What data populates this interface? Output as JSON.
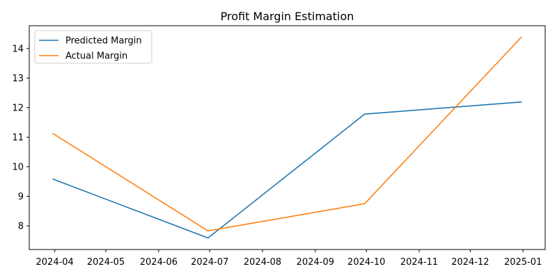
{
  "chart_data": {
    "type": "line",
    "title": "Profit Margin Estimation",
    "xlabel": "",
    "ylabel": "",
    "x": [
      "2024-03-31",
      "2024-06-30",
      "2024-09-30",
      "2024-12-31"
    ],
    "series": [
      {
        "name": "Predicted Margin",
        "color": "#1f77b4",
        "values": [
          9.58,
          7.59,
          11.78,
          12.19
        ]
      },
      {
        "name": "Actual Margin",
        "color": "#ff7f0e",
        "values": [
          11.12,
          7.83,
          8.75,
          14.38
        ]
      }
    ],
    "xticks": [
      "2024-04",
      "2024-05",
      "2024-06",
      "2024-07",
      "2024-08",
      "2024-09",
      "2024-10",
      "2024-11",
      "2024-12",
      "2025-01"
    ],
    "yticks": [
      8,
      9,
      10,
      11,
      12,
      13,
      14
    ],
    "xlim": [
      "2024-03-17",
      "2025-01-14"
    ],
    "ylim": [
      7.2,
      14.77
    ],
    "grid": false,
    "legend_position": "top-left"
  }
}
